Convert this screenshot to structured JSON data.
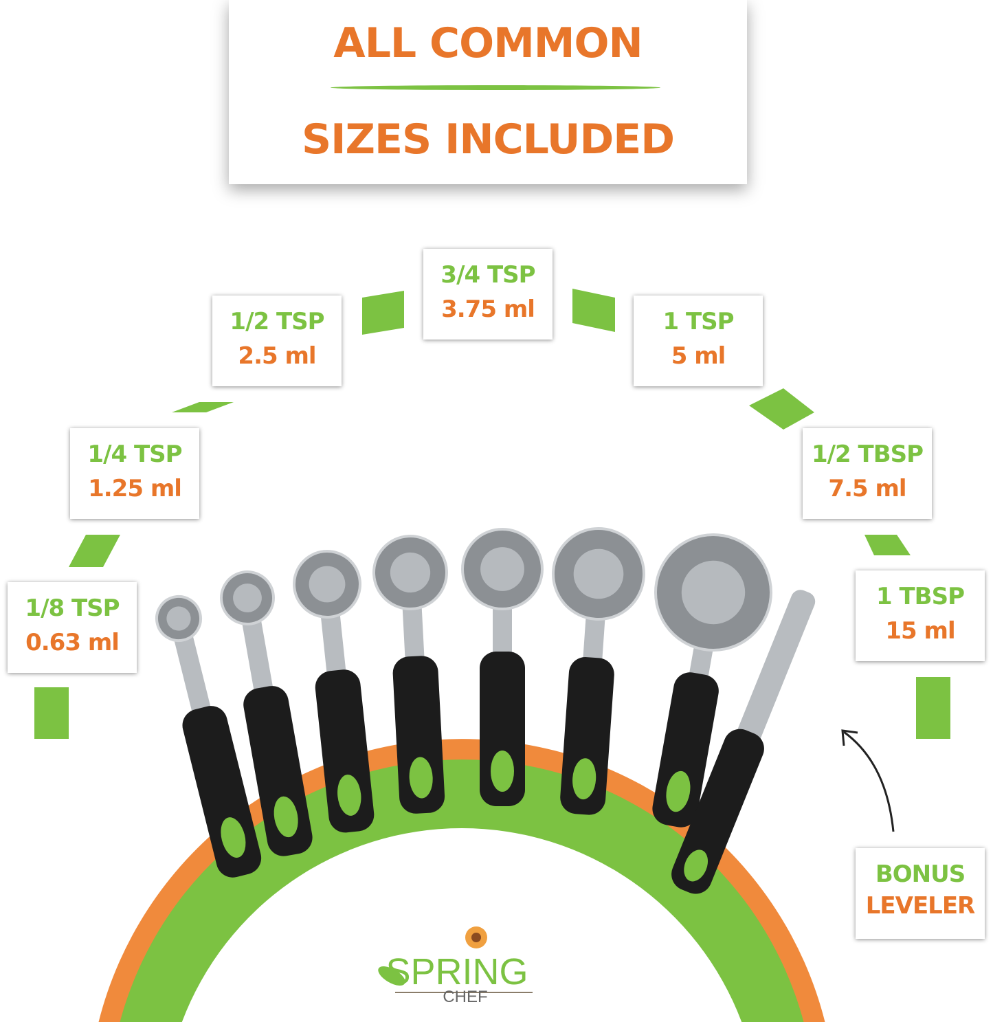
{
  "header": {
    "line1": "ALL COMMON",
    "line2": "SIZES INCLUDED"
  },
  "labels": [
    {
      "size": "1/8 TSP",
      "volume": "0.63 ml"
    },
    {
      "size": "1/4 TSP",
      "volume": "1.25 ml"
    },
    {
      "size": "1/2 TSP",
      "volume": "2.5 ml"
    },
    {
      "size": "3/4 TSP",
      "volume": "3.75 ml"
    },
    {
      "size": "1 TSP",
      "volume": "5 ml"
    },
    {
      "size": "1/2 TBSP",
      "volume": "7.5 ml"
    },
    {
      "size": "1 TBSP",
      "volume": "15 ml"
    },
    {
      "size": "BONUS",
      "volume": "LEVELER"
    }
  ],
  "logo": {
    "name": "SPRING",
    "sub": "CHEF"
  },
  "colors": {
    "orange": "#e8762a",
    "green": "#7cc242",
    "handle": "#1c1c1c",
    "steel": "#b8bcc0"
  }
}
